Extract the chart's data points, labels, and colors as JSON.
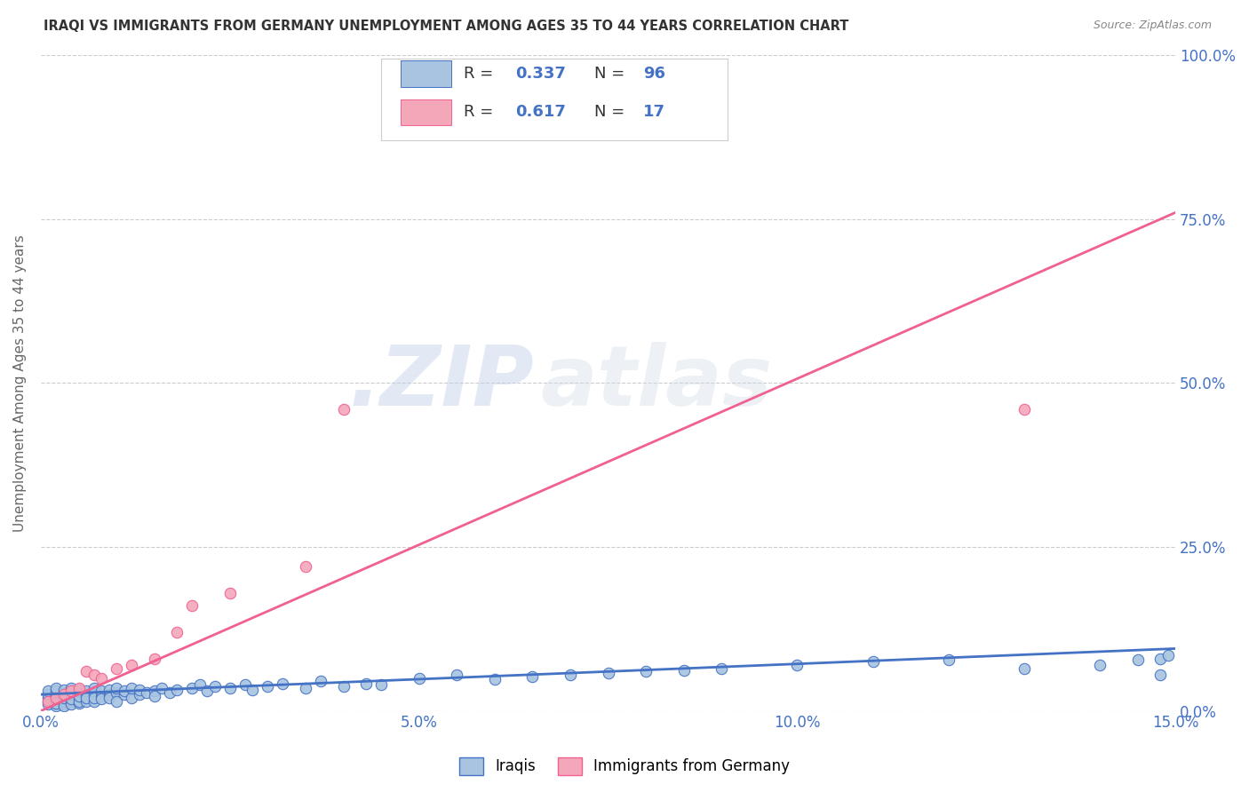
{
  "title": "IRAQI VS IMMIGRANTS FROM GERMANY UNEMPLOYMENT AMONG AGES 35 TO 44 YEARS CORRELATION CHART",
  "source": "Source: ZipAtlas.com",
  "ylabel": "Unemployment Among Ages 35 to 44 years",
  "xlim": [
    0.0,
    0.15
  ],
  "ylim": [
    0.0,
    1.0
  ],
  "xticks": [
    0.0,
    0.05,
    0.1,
    0.15
  ],
  "xticklabels": [
    "0.0%",
    "5.0%",
    "10.0%",
    "15.0%"
  ],
  "yticks": [
    0.0,
    0.25,
    0.5,
    0.75,
    1.0
  ],
  "yticklabels": [
    "0.0%",
    "25.0%",
    "50.0%",
    "75.0%",
    "100.0%"
  ],
  "iraqis_color": "#a8c4e0",
  "germany_color": "#f4a7b9",
  "iraqis_line_color": "#4472c4",
  "germany_line_color": "#f06090",
  "iraqis_R": 0.337,
  "iraqis_N": 96,
  "germany_R": 0.617,
  "germany_N": 17,
  "watermark_zip": ".ZIP",
  "watermark_atlas": "atlas",
  "background_color": "#ffffff",
  "grid_color": "#cccccc",
  "title_color": "#333333",
  "axis_label_color": "#666666",
  "tick_color": "#4472c4",
  "iraqis_trendline_y0": 0.025,
  "iraqis_trendline_y1": 0.095,
  "germany_trendline_y0": 0.0,
  "germany_trendline_y1": 0.76,
  "iraqis_x": [
    0.001,
    0.001,
    0.001,
    0.001,
    0.001,
    0.002,
    0.002,
    0.002,
    0.002,
    0.002,
    0.002,
    0.002,
    0.002,
    0.003,
    0.003,
    0.003,
    0.003,
    0.003,
    0.003,
    0.003,
    0.003,
    0.003,
    0.004,
    0.004,
    0.004,
    0.004,
    0.004,
    0.004,
    0.004,
    0.005,
    0.005,
    0.005,
    0.005,
    0.005,
    0.005,
    0.006,
    0.006,
    0.006,
    0.006,
    0.007,
    0.007,
    0.007,
    0.007,
    0.008,
    0.008,
    0.008,
    0.009,
    0.009,
    0.009,
    0.01,
    0.01,
    0.01,
    0.011,
    0.011,
    0.012,
    0.012,
    0.013,
    0.013,
    0.014,
    0.015,
    0.015,
    0.016,
    0.017,
    0.018,
    0.02,
    0.021,
    0.022,
    0.023,
    0.025,
    0.027,
    0.028,
    0.03,
    0.032,
    0.035,
    0.037,
    0.04,
    0.043,
    0.045,
    0.05,
    0.055,
    0.06,
    0.065,
    0.07,
    0.075,
    0.08,
    0.085,
    0.09,
    0.1,
    0.11,
    0.12,
    0.13,
    0.14,
    0.145,
    0.148,
    0.148,
    0.149
  ],
  "iraqis_y": [
    0.02,
    0.015,
    0.025,
    0.01,
    0.03,
    0.015,
    0.02,
    0.025,
    0.01,
    0.03,
    0.035,
    0.008,
    0.012,
    0.018,
    0.022,
    0.01,
    0.028,
    0.015,
    0.025,
    0.032,
    0.008,
    0.02,
    0.015,
    0.022,
    0.03,
    0.01,
    0.025,
    0.035,
    0.018,
    0.02,
    0.012,
    0.028,
    0.015,
    0.032,
    0.022,
    0.025,
    0.015,
    0.03,
    0.02,
    0.025,
    0.015,
    0.035,
    0.02,
    0.022,
    0.03,
    0.018,
    0.025,
    0.032,
    0.02,
    0.028,
    0.015,
    0.035,
    0.025,
    0.03,
    0.02,
    0.035,
    0.025,
    0.032,
    0.028,
    0.03,
    0.022,
    0.035,
    0.028,
    0.032,
    0.035,
    0.04,
    0.03,
    0.038,
    0.035,
    0.04,
    0.032,
    0.038,
    0.042,
    0.035,
    0.045,
    0.038,
    0.042,
    0.04,
    0.05,
    0.055,
    0.048,
    0.052,
    0.055,
    0.058,
    0.06,
    0.062,
    0.065,
    0.07,
    0.075,
    0.078,
    0.065,
    0.07,
    0.078,
    0.08,
    0.055,
    0.085
  ],
  "germany_x": [
    0.001,
    0.002,
    0.003,
    0.004,
    0.005,
    0.006,
    0.007,
    0.008,
    0.01,
    0.012,
    0.015,
    0.018,
    0.02,
    0.025,
    0.035,
    0.04,
    0.13
  ],
  "germany_y": [
    0.015,
    0.02,
    0.025,
    0.03,
    0.035,
    0.06,
    0.055,
    0.05,
    0.065,
    0.07,
    0.08,
    0.12,
    0.16,
    0.18,
    0.22,
    0.46,
    0.46
  ]
}
